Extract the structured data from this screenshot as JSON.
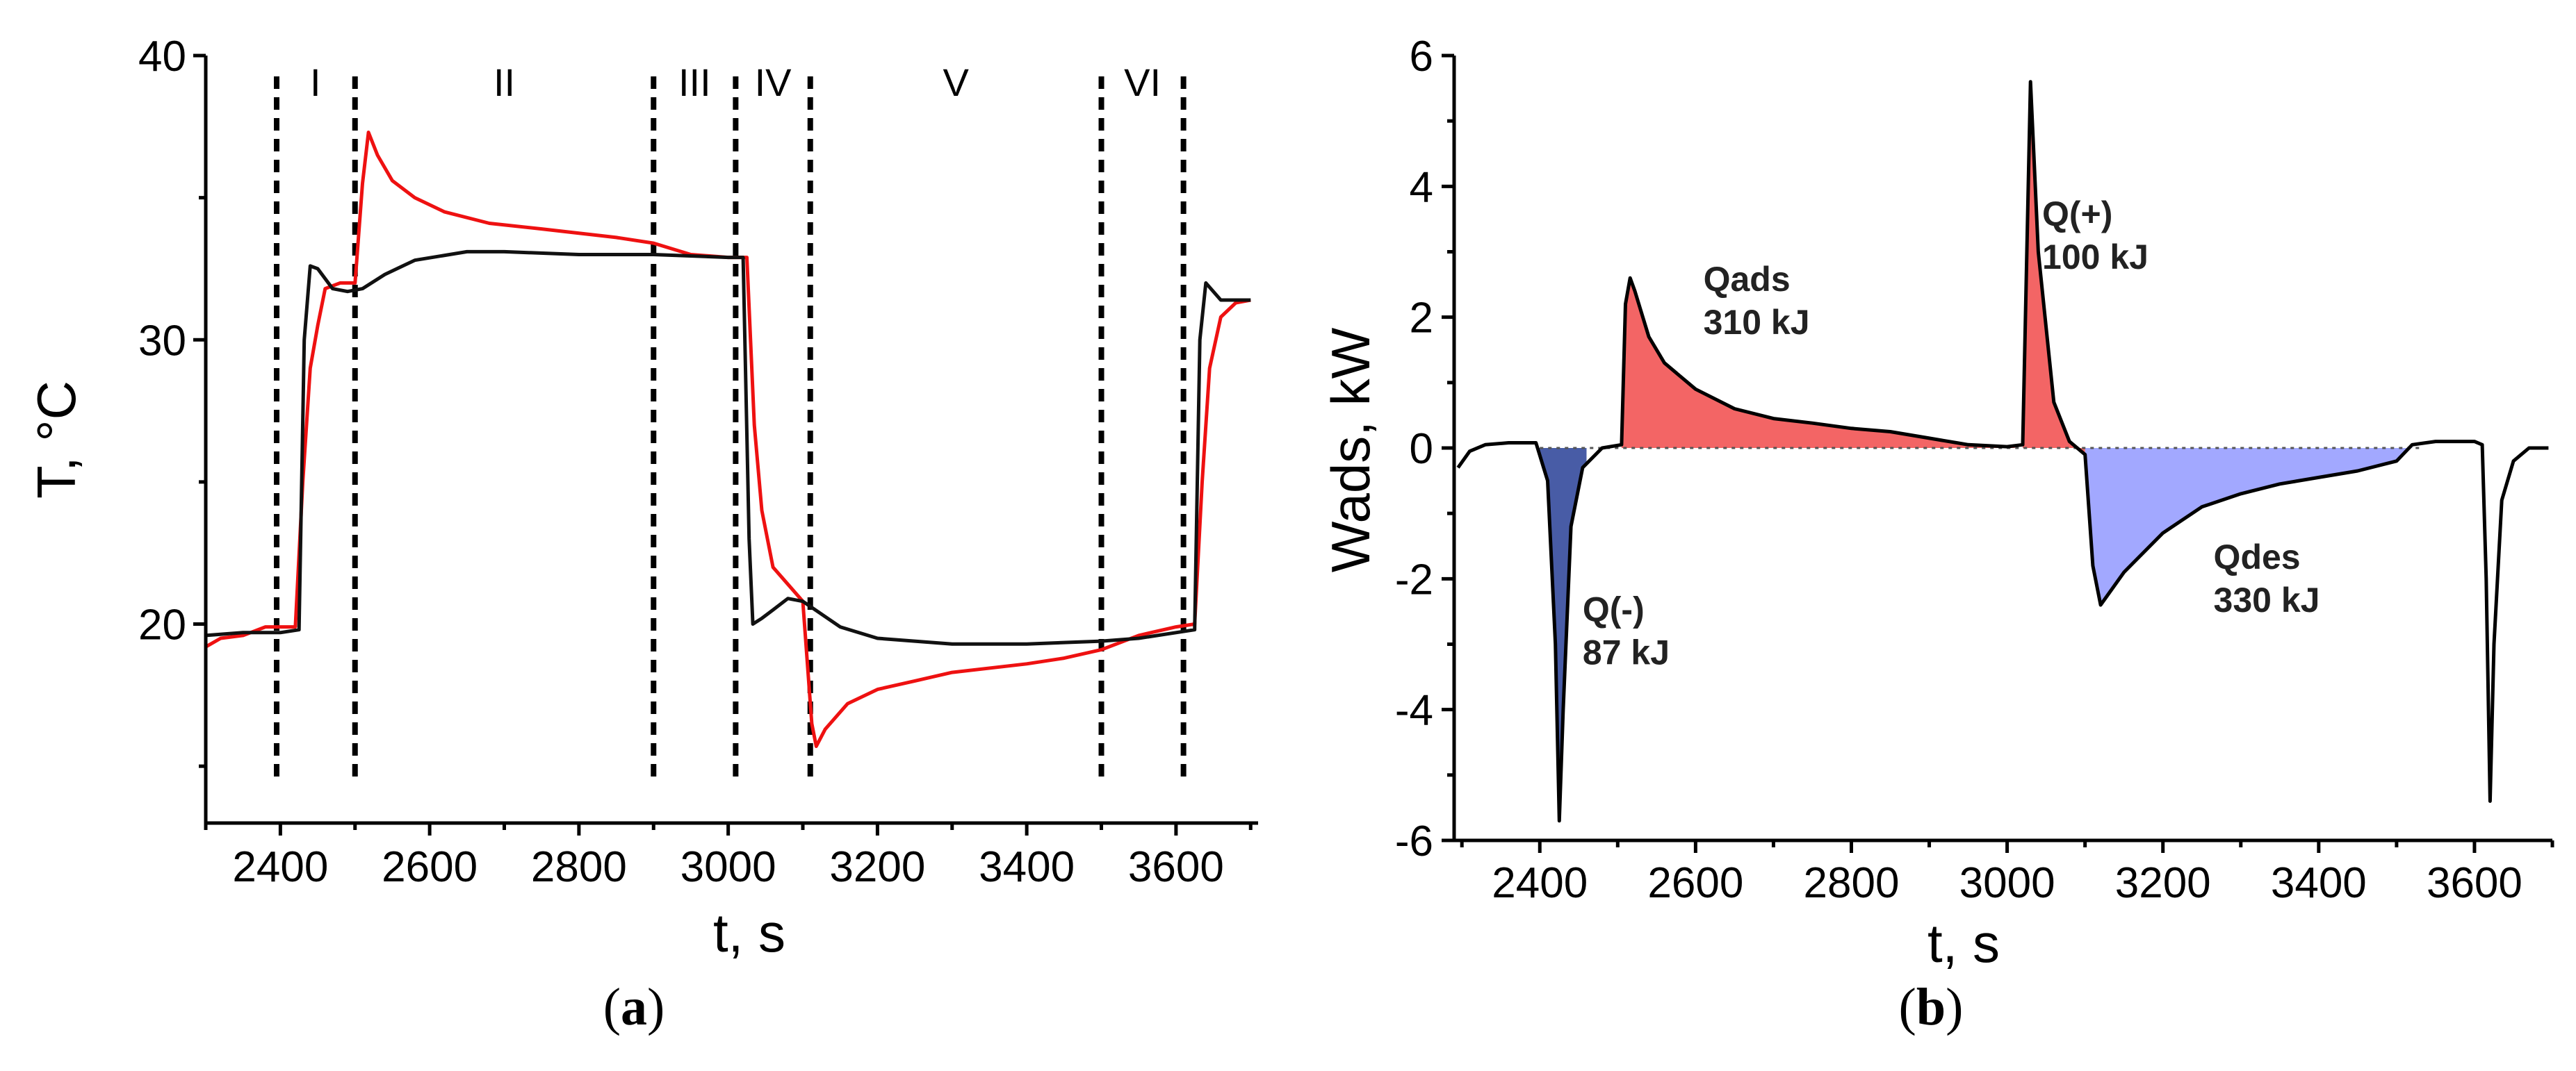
{
  "chart_data": [
    {
      "panel_label": "a",
      "type": "line",
      "xlabel": "t, s",
      "ylabel": "T, °C",
      "xlim": [
        2300,
        3710
      ],
      "ylim": [
        13,
        40
      ],
      "xticks": [
        "2400",
        "2600",
        "2800",
        "3000",
        "3200",
        "3400",
        "3600"
      ],
      "yticks": [
        "20",
        "30",
        "40"
      ],
      "phase_boundaries": [
        2395,
        2500,
        2900,
        3010,
        3110,
        3500,
        3610
      ],
      "phases": [
        {
          "label": "I",
          "x": 2447
        },
        {
          "label": "II",
          "x": 2700
        },
        {
          "label": "III",
          "x": 2955
        },
        {
          "label": "IV",
          "x": 3060
        },
        {
          "label": "V",
          "x": 3305
        },
        {
          "label": "VI",
          "x": 3555
        }
      ],
      "series": [
        {
          "name": "red",
          "color": "#ee1111",
          "x": [
            2300,
            2320,
            2350,
            2380,
            2395,
            2420,
            2430,
            2440,
            2450,
            2460,
            2480,
            2500,
            2510,
            2518,
            2530,
            2550,
            2580,
            2620,
            2680,
            2750,
            2850,
            2900,
            2950,
            3000,
            3025,
            3035,
            3045,
            3060,
            3080,
            3100,
            3112,
            3118,
            3130,
            3160,
            3200,
            3250,
            3300,
            3400,
            3450,
            3500,
            3550,
            3600,
            3625,
            3635,
            3645,
            3660,
            3680,
            3700
          ],
          "values": [
            19.2,
            19.5,
            19.6,
            19.9,
            19.9,
            19.9,
            25.0,
            29.0,
            30.5,
            31.8,
            32.0,
            32.0,
            35.5,
            37.3,
            36.5,
            35.6,
            35.0,
            34.5,
            34.1,
            33.9,
            33.6,
            33.4,
            33.0,
            32.9,
            32.9,
            27.0,
            24.0,
            22.0,
            21.4,
            20.8,
            16.5,
            15.7,
            16.3,
            17.2,
            17.7,
            18.0,
            18.3,
            18.6,
            18.8,
            19.1,
            19.6,
            19.9,
            20.0,
            25.0,
            29.0,
            30.8,
            31.3,
            31.4
          ]
        },
        {
          "name": "black",
          "color": "#111111",
          "x": [
            2300,
            2350,
            2400,
            2425,
            2432,
            2440,
            2450,
            2470,
            2490,
            2510,
            2540,
            2580,
            2650,
            2700,
            2800,
            2900,
            3000,
            3020,
            3028,
            3033,
            3045,
            3060,
            3080,
            3100,
            3150,
            3200,
            3300,
            3400,
            3500,
            3550,
            3600,
            3625,
            3632,
            3640,
            3660,
            3700
          ],
          "values": [
            19.6,
            19.7,
            19.7,
            19.8,
            30.0,
            32.6,
            32.5,
            31.8,
            31.7,
            31.8,
            32.3,
            32.8,
            33.1,
            33.1,
            33.0,
            33.0,
            32.9,
            32.9,
            23.0,
            20.0,
            20.2,
            20.5,
            20.9,
            20.8,
            19.9,
            19.5,
            19.3,
            19.3,
            19.4,
            19.5,
            19.7,
            19.8,
            30.0,
            32.0,
            31.4,
            31.4
          ]
        }
      ]
    },
    {
      "panel_label": "b",
      "type": "area",
      "xlabel": "t, s",
      "ylabel": "Wads, kW",
      "xlim": [
        2290,
        3700
      ],
      "ylim": [
        -6,
        6
      ],
      "xticks": [
        "2400",
        "2600",
        "2800",
        "3000",
        "3200",
        "3400",
        "3600"
      ],
      "yticks": [
        "-6",
        "-4",
        "-2",
        "0",
        "2",
        "4",
        "6"
      ],
      "series": [
        {
          "name": "Wads",
          "color": "#000000",
          "x": [
            2295,
            2310,
            2330,
            2360,
            2395,
            2410,
            2420,
            2425,
            2430,
            2440,
            2455,
            2480,
            2505,
            2510,
            2516,
            2522,
            2540,
            2560,
            2600,
            2650,
            2700,
            2750,
            2800,
            2850,
            2900,
            2950,
            3000,
            3020,
            3030,
            3040,
            3060,
            3080,
            3100,
            3110,
            3120,
            3150,
            3200,
            3250,
            3300,
            3350,
            3400,
            3450,
            3500,
            3520,
            3550,
            3600,
            3610,
            3615,
            3620,
            3625,
            3635,
            3650,
            3670,
            3695
          ],
          "values": [
            -0.3,
            -0.05,
            0.05,
            0.08,
            0.08,
            -0.5,
            -3.0,
            -5.7,
            -4.0,
            -1.2,
            -0.3,
            0.0,
            0.05,
            2.2,
            2.6,
            2.4,
            1.7,
            1.3,
            0.9,
            0.6,
            0.45,
            0.38,
            0.3,
            0.25,
            0.15,
            0.05,
            0.02,
            0.05,
            5.6,
            3.0,
            0.7,
            0.1,
            -0.1,
            -1.8,
            -2.4,
            -1.9,
            -1.3,
            -0.9,
            -0.7,
            -0.55,
            -0.45,
            -0.35,
            -0.2,
            0.05,
            0.1,
            0.1,
            0.05,
            -2.0,
            -5.4,
            -3.0,
            -0.8,
            -0.2,
            0.0,
            0.0
          ]
        }
      ],
      "areas": [
        {
          "name": "Q(-)",
          "color": "#485ca6",
          "range": [
            2395,
            2460
          ]
        },
        {
          "name": "Qads",
          "color": "#f36565",
          "range": [
            2505,
            3010
          ]
        },
        {
          "name": "Q(+)",
          "color": "#f36565",
          "range": [
            3020,
            3100
          ]
        },
        {
          "name": "Qdes",
          "color": "#a2a8ff",
          "range": [
            3100,
            3520
          ]
        }
      ],
      "annotations": [
        {
          "line1": "Qads",
          "line2": "310 kJ",
          "x": 2610,
          "y": 2.4
        },
        {
          "line1": "Q(+)",
          "line2": "100 kJ",
          "x": 3045,
          "y": 3.4
        },
        {
          "line1": "Q(-)",
          "line2": "87 kJ",
          "x": 2455,
          "y": -2.65
        },
        {
          "line1": "Qdes",
          "line2": "330 kJ",
          "x": 3265,
          "y": -1.85
        }
      ]
    }
  ],
  "labels": {
    "a_open": "(",
    "a_letter": "a",
    "a_close": ")",
    "b_open": "(",
    "b_letter": "b",
    "b_close": ")"
  }
}
